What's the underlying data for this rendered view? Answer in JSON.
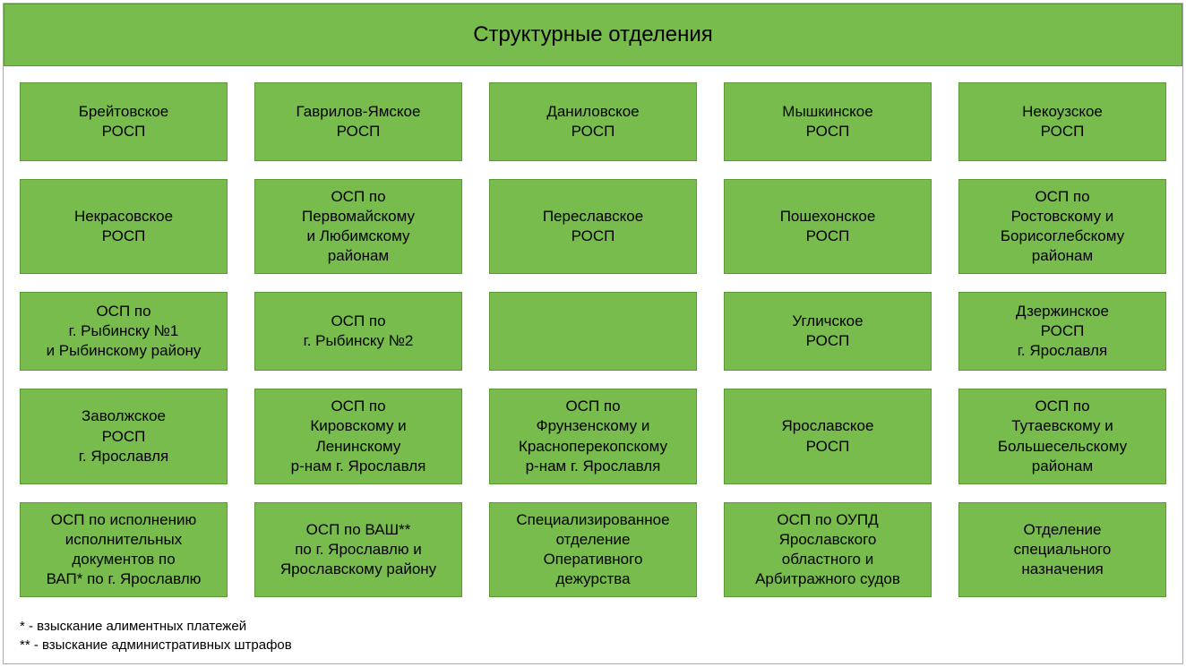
{
  "header": {
    "title": "Структурные отделения"
  },
  "grid": {
    "cells": [
      "Брейтовское\nРОСП",
      "Гаврилов-Ямское\nРОСП",
      "Даниловское\nРОСП",
      "Мышкинское\nРОСП",
      "Некоузское\nРОСП",
      "Некрасовское\nРОСП",
      "ОСП по\nПервомайскому\nи Любимскому\nрайонам",
      "Переславское\nРОСП",
      "Пошехонское\nРОСП",
      "ОСП по\nРостовскому и\nБорисоглебскому\nрайонам",
      "ОСП по\nг. Рыбинску №1\nи Рыбинскому району",
      "ОСП по\nг. Рыбинску №2",
      "",
      "Угличское\nРОСП",
      "Дзержинское\nРОСП\nг. Ярославля",
      "Заволжское\nРОСП\nг. Ярославля",
      "ОСП по\nКировскому и\nЛенинскому\nр-нам г. Ярославля",
      "ОСП по\nФрунзенскому и\nКрасноперекопскому\nр-нам г. Ярославля",
      "Ярославское\nРОСП",
      "ОСП по\nТутаевскому и\nБольшесельскому\nрайонам",
      "ОСП по исполнению\nисполнительных\nдокументов по\nВАП* по г. Ярославлю",
      "ОСП по ВАШ**\nпо г. Ярославлю и\nЯрославскому району",
      "Специализированное\nотделение\nОперативного\nдежурства",
      "ОСП по ОУПД\nЯрославского\nобластного и\nАрбитражного судов",
      "Отделение\nспециального\nназначения"
    ]
  },
  "footnotes": {
    "note1": "* - взыскание алиментных платежей",
    "note2": "** - взыскание административных штрафов"
  },
  "styling": {
    "cell_bg": "#77bc4c",
    "cell_border": "#5a9a35",
    "text_color": "#000000",
    "header_fontsize": 24,
    "cell_fontsize": 17,
    "footnote_fontsize": 15,
    "columns": 5,
    "rows": 5
  }
}
